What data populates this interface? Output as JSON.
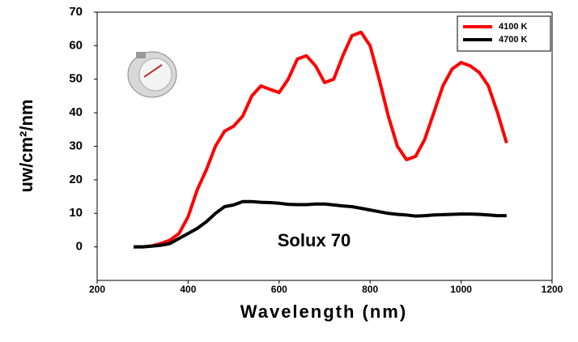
{
  "chart_data": {
    "type": "line",
    "x_label": "Wavelength (nm)",
    "y_label": "uw/cm²/nm",
    "annotation": "Solux 70",
    "x": [
      280,
      300,
      320,
      340,
      360,
      380,
      400,
      420,
      440,
      460,
      480,
      500,
      520,
      540,
      560,
      580,
      600,
      620,
      640,
      660,
      680,
      700,
      720,
      740,
      760,
      780,
      800,
      820,
      840,
      860,
      880,
      900,
      920,
      940,
      960,
      980,
      1000,
      1020,
      1040,
      1060,
      1080,
      1100
    ],
    "series": [
      {
        "name": "4100 K",
        "color": "#ff0000",
        "values": [
          0,
          0,
          0.3,
          1,
          2,
          4,
          9,
          17,
          23,
          30,
          34.5,
          36,
          39,
          45,
          48,
          47,
          46,
          50,
          56,
          57,
          54,
          49,
          50,
          57,
          63,
          64,
          60,
          50,
          39,
          30,
          26,
          27,
          32,
          40,
          48,
          53,
          55,
          54,
          52,
          48,
          40,
          31
        ]
      },
      {
        "name": "4700 K",
        "color": "#000000",
        "values": [
          0,
          0,
          0.2,
          0.5,
          1,
          2.5,
          4,
          5.5,
          7.5,
          10,
          12,
          12.5,
          13.5,
          13.5,
          13.3,
          13.2,
          13,
          12.7,
          12.6,
          12.6,
          12.8,
          12.8,
          12.5,
          12.2,
          12,
          11.5,
          11,
          10.5,
          10,
          9.7,
          9.5,
          9.2,
          9.3,
          9.5,
          9.6,
          9.7,
          9.8,
          9.8,
          9.7,
          9.5,
          9.3,
          9.3
        ]
      }
    ],
    "xlim": [
      200,
      1200
    ],
    "xticks": [
      200,
      400,
      600,
      800,
      1000,
      1200
    ],
    "ylim": [
      -10,
      70
    ],
    "yticks": [
      0,
      10,
      20,
      30,
      40,
      50,
      60,
      70
    ],
    "grid": false,
    "legend": "top-right"
  }
}
